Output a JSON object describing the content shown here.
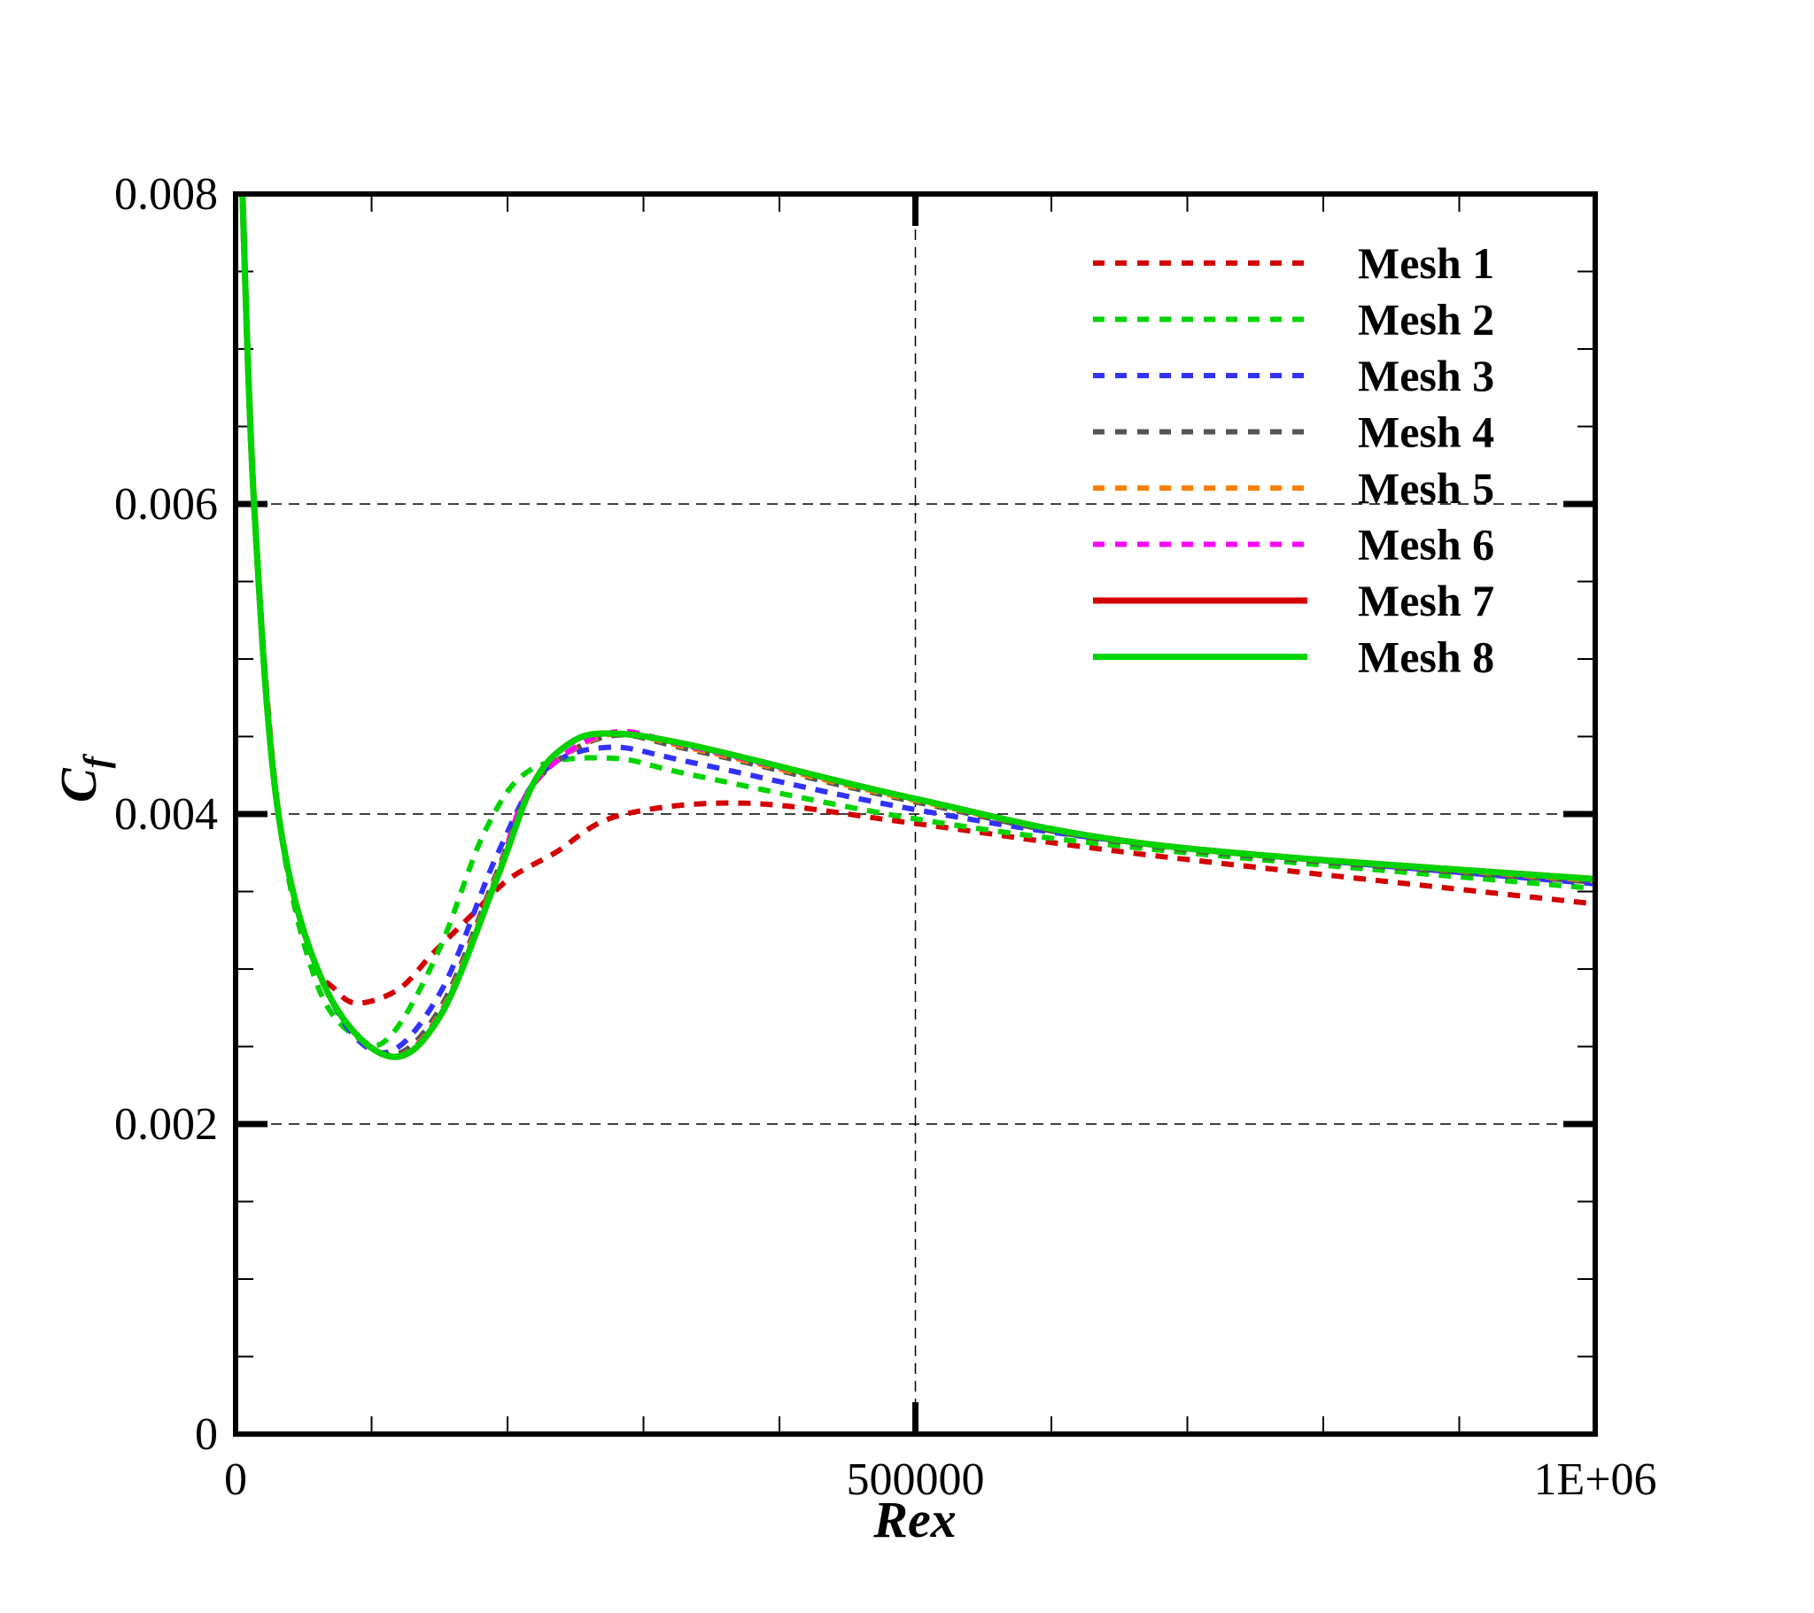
{
  "chart_data": {
    "type": "line",
    "title": "",
    "xlabel": "Rex",
    "ylabel_main": "C",
    "ylabel_sub": "f",
    "xlim": [
      0,
      1000000
    ],
    "ylim": [
      0,
      0.008
    ],
    "x_ticks": [
      {
        "value": 0,
        "label": "0"
      },
      {
        "value": 500000,
        "label": "500000"
      },
      {
        "value": 1000000,
        "label": "1E+06"
      }
    ],
    "y_ticks": [
      {
        "value": 0,
        "label": "0"
      },
      {
        "value": 0.002,
        "label": "0.002"
      },
      {
        "value": 0.004,
        "label": "0.004"
      },
      {
        "value": 0.006,
        "label": "0.006"
      },
      {
        "value": 0.008,
        "label": "0.008"
      }
    ],
    "grid": {
      "x": [
        500000
      ],
      "y": [
        0.002,
        0.004,
        0.006
      ],
      "style": "dashed"
    },
    "legend_position": "top-right",
    "series": [
      {
        "name": "Mesh 1",
        "color": "#d40000",
        "dash": true,
        "x": [
          5000,
          13600,
          31500,
          55000,
          73000,
          90000,
          120000,
          145000,
          175000,
          201000,
          235000,
          282000,
          375000,
          499000,
          677000,
          1000000
        ],
        "y": [
          0.008,
          0.006,
          0.004,
          0.0031,
          0.00287,
          0.00278,
          0.00287,
          0.0031,
          0.00336,
          0.00358,
          0.00375,
          0.00399,
          0.00407,
          0.00394,
          0.00373,
          0.00342
        ]
      },
      {
        "name": "Mesh 2",
        "color": "#00d400",
        "dash": true,
        "x": [
          5000,
          13600,
          31500,
          60000,
          93000,
          116000,
          150000,
          184000,
          218000,
          277000,
          337000,
          499000,
          677000,
          1000000
        ],
        "y": [
          0.008,
          0.006,
          0.004,
          0.0029,
          0.00254,
          0.00259,
          0.00313,
          0.0039,
          0.00429,
          0.00436,
          0.00425,
          0.00397,
          0.00377,
          0.00352
        ]
      },
      {
        "name": "Mesh 3",
        "color": "#3232ff",
        "dash": true,
        "x": [
          5000,
          13600,
          31500,
          65000,
          107000,
          150000,
          192000,
          226000,
          273000,
          337000,
          499000,
          677000,
          1000000
        ],
        "y": [
          0.008,
          0.006,
          0.004,
          0.0029,
          0.00246,
          0.00284,
          0.00373,
          0.00427,
          0.00443,
          0.00433,
          0.00403,
          0.0038,
          0.00355
        ]
      },
      {
        "name": "Mesh 4",
        "color": "#555555",
        "dash": true,
        "x": [
          5000,
          13600,
          31500,
          65000,
          110000,
          150000,
          192000,
          220000,
          273000,
          337000,
          499000,
          677000,
          1000000
        ],
        "y": [
          0.008,
          0.006,
          0.004,
          0.0029,
          0.00245,
          0.00274,
          0.00362,
          0.0042,
          0.0045,
          0.00441,
          0.00408,
          0.00379,
          0.00356
        ]
      },
      {
        "name": "Mesh 5",
        "color": "#ff8000",
        "dash": true,
        "x": [
          5000,
          13600,
          31500,
          65000,
          111000,
          150000,
          192000,
          219000,
          273000,
          337000,
          499000,
          677000,
          1000000
        ],
        "y": [
          0.008,
          0.006,
          0.004,
          0.0029,
          0.00244,
          0.00271,
          0.0036,
          0.00419,
          0.00451,
          0.00442,
          0.00409,
          0.0038,
          0.00357
        ]
      },
      {
        "name": "Mesh 6",
        "color": "#ff00ff",
        "dash": true,
        "x": [
          5000,
          13600,
          31500,
          65000,
          111000,
          150000,
          192000,
          218000,
          273000,
          337000,
          499000,
          677000,
          1000000
        ],
        "y": [
          0.008,
          0.006,
          0.004,
          0.0029,
          0.00244,
          0.0027,
          0.00359,
          0.00418,
          0.00452,
          0.00443,
          0.0041,
          0.0038,
          0.00358
        ]
      },
      {
        "name": "Mesh 7",
        "color": "#d40000",
        "dash": false,
        "x": [
          5000,
          13600,
          31500,
          65000,
          111500,
          150000,
          192000,
          218000,
          243000,
          273000,
          337000,
          499000,
          677000,
          1000000
        ],
        "y": [
          0.008,
          0.006,
          0.004,
          0.0029,
          0.00244,
          0.00269,
          0.00358,
          0.00418,
          0.00444,
          0.00452,
          0.00444,
          0.0041,
          0.0038,
          0.00358
        ]
      },
      {
        "name": "Mesh 8",
        "color": "#00d400",
        "dash": false,
        "x": [
          5000,
          13600,
          31500,
          65000,
          111500,
          150000,
          192000,
          218000,
          243000,
          273000,
          337000,
          499000,
          677000,
          1000000
        ],
        "y": [
          0.008,
          0.006,
          0.004,
          0.0029,
          0.00244,
          0.00269,
          0.00358,
          0.00418,
          0.00444,
          0.00452,
          0.00444,
          0.0041,
          0.0038,
          0.00358
        ]
      }
    ]
  }
}
